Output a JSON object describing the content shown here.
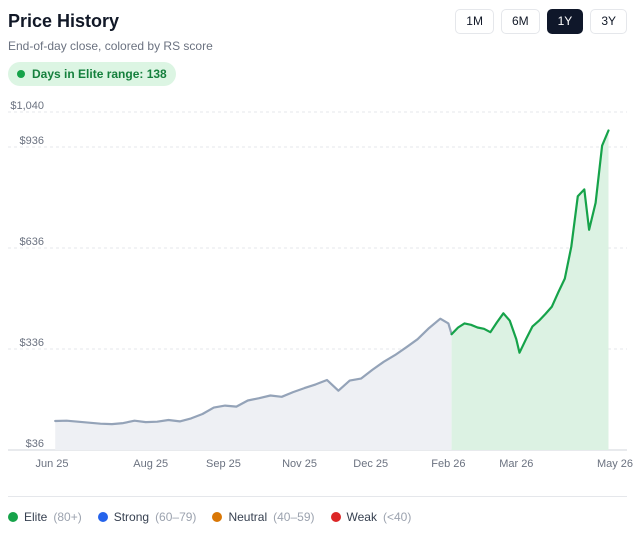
{
  "header": {
    "title": "Price History",
    "subtitle": "End-of-day close, colored by RS score"
  },
  "ranges": [
    {
      "label": "1M",
      "active": false
    },
    {
      "label": "6M",
      "active": false
    },
    {
      "label": "1Y",
      "active": true
    },
    {
      "label": "3Y",
      "active": false
    }
  ],
  "badge": {
    "text": "Days in Elite range: 138",
    "color": "#16a34a"
  },
  "legend": [
    {
      "name": "Elite",
      "range": "(80+)",
      "color": "#16a34a"
    },
    {
      "name": "Strong",
      "range": "(60–79)",
      "color": "#2563eb"
    },
    {
      "name": "Neutral",
      "range": "(40–59)",
      "color": "#d97706"
    },
    {
      "name": "Weak",
      "range": "(<40)",
      "color": "#dc2626"
    }
  ],
  "chart_data": {
    "type": "line",
    "title": "",
    "ylim": [
      36,
      1040
    ],
    "y_ticks": [
      {
        "label": "$1,040",
        "value": 1040
      },
      {
        "label": "$936",
        "value": 936
      },
      {
        "label": "$636",
        "value": 636
      },
      {
        "label": "$336",
        "value": 336
      },
      {
        "label": "$36",
        "value": 36
      }
    ],
    "x_ticks": [
      "Jun 25",
      "Aug 25",
      "Sep 25",
      "Nov 25",
      "Dec 25",
      "Feb 26",
      "Mar 26",
      "May 26"
    ],
    "grid": true,
    "area_fill": true,
    "series": [
      {
        "segment": "neutral-gray",
        "color": "#94a3b8",
        "fill": "#eef0f4",
        "points": [
          {
            "x": "2025-06-03",
            "y": 122
          },
          {
            "x": "2025-06-10",
            "y": 123
          },
          {
            "x": "2025-06-17",
            "y": 120
          },
          {
            "x": "2025-06-24",
            "y": 117
          },
          {
            "x": "2025-07-01",
            "y": 114
          },
          {
            "x": "2025-07-08",
            "y": 113
          },
          {
            "x": "2025-07-15",
            "y": 116
          },
          {
            "x": "2025-07-22",
            "y": 123
          },
          {
            "x": "2025-07-29",
            "y": 119
          },
          {
            "x": "2025-08-05",
            "y": 120
          },
          {
            "x": "2025-08-12",
            "y": 125
          },
          {
            "x": "2025-08-19",
            "y": 121
          },
          {
            "x": "2025-08-26",
            "y": 130
          },
          {
            "x": "2025-09-02",
            "y": 143
          },
          {
            "x": "2025-09-09",
            "y": 162
          },
          {
            "x": "2025-09-16",
            "y": 168
          },
          {
            "x": "2025-09-23",
            "y": 165
          },
          {
            "x": "2025-09-30",
            "y": 183
          },
          {
            "x": "2025-10-07",
            "y": 190
          },
          {
            "x": "2025-10-14",
            "y": 198
          },
          {
            "x": "2025-10-21",
            "y": 194
          },
          {
            "x": "2025-10-28",
            "y": 208
          },
          {
            "x": "2025-11-04",
            "y": 220
          },
          {
            "x": "2025-11-11",
            "y": 231
          },
          {
            "x": "2025-11-18",
            "y": 244
          },
          {
            "x": "2025-11-25",
            "y": 212
          },
          {
            "x": "2025-12-02",
            "y": 242
          },
          {
            "x": "2025-12-09",
            "y": 248
          },
          {
            "x": "2025-12-16",
            "y": 274
          },
          {
            "x": "2025-12-23",
            "y": 298
          },
          {
            "x": "2025-12-30",
            "y": 318
          },
          {
            "x": "2026-01-06",
            "y": 341
          },
          {
            "x": "2026-01-13",
            "y": 365
          },
          {
            "x": "2026-01-20",
            "y": 398
          },
          {
            "x": "2026-01-27",
            "y": 426
          },
          {
            "x": "2026-02-01",
            "y": 412
          },
          {
            "x": "2026-02-03",
            "y": 380
          }
        ]
      },
      {
        "segment": "elite-green",
        "color": "#16a34a",
        "fill": "#dcf2e3",
        "points": [
          {
            "x": "2026-02-03",
            "y": 380
          },
          {
            "x": "2026-02-07",
            "y": 400
          },
          {
            "x": "2026-02-11",
            "y": 412
          },
          {
            "x": "2026-02-15",
            "y": 408
          },
          {
            "x": "2026-02-19",
            "y": 400
          },
          {
            "x": "2026-02-23",
            "y": 396
          },
          {
            "x": "2026-02-27",
            "y": 386
          },
          {
            "x": "2026-03-03",
            "y": 415
          },
          {
            "x": "2026-03-07",
            "y": 442
          },
          {
            "x": "2026-03-11",
            "y": 420
          },
          {
            "x": "2026-03-15",
            "y": 365
          },
          {
            "x": "2026-03-17",
            "y": 325
          },
          {
            "x": "2026-03-21",
            "y": 365
          },
          {
            "x": "2026-03-25",
            "y": 403
          },
          {
            "x": "2026-03-29",
            "y": 420
          },
          {
            "x": "2026-04-02",
            "y": 440
          },
          {
            "x": "2026-04-06",
            "y": 462
          },
          {
            "x": "2026-04-10",
            "y": 505
          },
          {
            "x": "2026-04-14",
            "y": 545
          },
          {
            "x": "2026-04-18",
            "y": 640
          },
          {
            "x": "2026-04-22",
            "y": 790
          },
          {
            "x": "2026-04-26",
            "y": 810
          },
          {
            "x": "2026-04-29",
            "y": 690
          },
          {
            "x": "2026-05-03",
            "y": 770
          },
          {
            "x": "2026-05-07",
            "y": 940
          },
          {
            "x": "2026-05-11",
            "y": 985
          }
        ]
      }
    ]
  }
}
